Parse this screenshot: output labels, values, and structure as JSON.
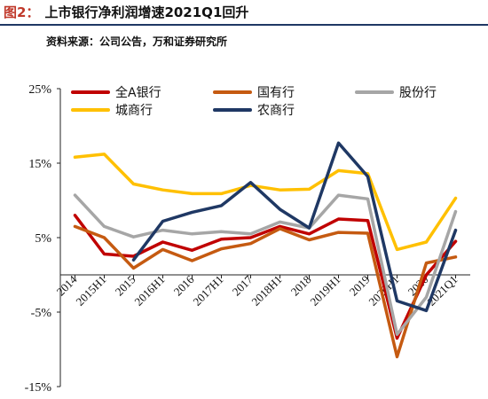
{
  "figure": {
    "label": "图2：",
    "title": "上市银行净利润增速2021Q1回升",
    "source": "资料来源：公司公告，万和证券研究所"
  },
  "chart_data": {
    "type": "line",
    "x": [
      "2014",
      "2015H1",
      "2015",
      "2016H1",
      "2016",
      "2017H1",
      "2017",
      "2018H1",
      "2018",
      "2019H1",
      "2019",
      "2020H1",
      "2020",
      "2021Q1"
    ],
    "yticks": [
      "25%",
      "15%",
      "5%",
      "-5%",
      "-15%"
    ],
    "ylim": [
      -15,
      25
    ],
    "y_unit": "%",
    "legend_position": "top",
    "series": [
      {
        "name": "全A银行",
        "color": "#c00000",
        "values": [
          8.0,
          2.8,
          2.5,
          4.4,
          3.3,
          4.8,
          5.0,
          6.5,
          5.5,
          7.5,
          7.3,
          -8.5,
          0.0,
          4.5
        ]
      },
      {
        "name": "国有行",
        "color": "#c55a11",
        "values": [
          6.5,
          5.0,
          0.9,
          3.4,
          1.9,
          3.5,
          4.2,
          6.2,
          4.7,
          5.7,
          5.6,
          -11.0,
          1.6,
          2.4
        ]
      },
      {
        "name": "股份行",
        "color": "#a6a6a6",
        "values": [
          10.7,
          6.5,
          5.1,
          6.0,
          5.5,
          5.8,
          5.5,
          7.1,
          6.3,
          10.7,
          10.2,
          -8.0,
          -3.0,
          8.5
        ]
      },
      {
        "name": "城商行",
        "color": "#ffc000",
        "values": [
          15.8,
          16.2,
          12.2,
          11.4,
          10.9,
          10.9,
          12.0,
          11.4,
          11.5,
          14.0,
          13.6,
          3.4,
          4.4,
          10.3
        ]
      },
      {
        "name": "农商行",
        "color": "#1f3864",
        "values": [
          null,
          null,
          2.0,
          7.2,
          8.4,
          9.3,
          12.4,
          8.8,
          6.3,
          17.7,
          13.2,
          -3.5,
          -4.8,
          6.0
        ]
      }
    ]
  }
}
